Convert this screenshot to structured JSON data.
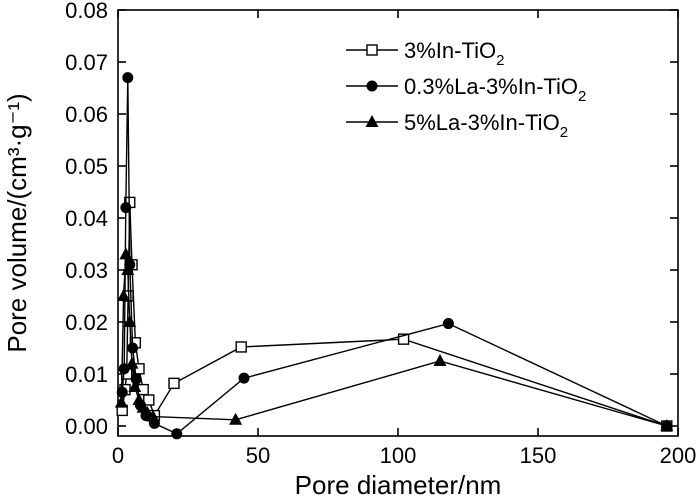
{
  "chart_data": {
    "type": "line",
    "xlabel": "Pore diameter/nm",
    "ylabel": "Pore volume/(cm³·g⁻¹)",
    "xlim": [
      0,
      200
    ],
    "ylim": [
      -0.002,
      0.08
    ],
    "x_ticks": [
      "0",
      "50",
      "100",
      "150",
      "200"
    ],
    "y_ticks": [
      "0.00",
      "0.01",
      "0.02",
      "0.03",
      "0.04",
      "0.05",
      "0.06",
      "0.07",
      "0.08"
    ],
    "x_tick_values": [
      0,
      50,
      100,
      150,
      200
    ],
    "y_tick_values": [
      0,
      0.01,
      0.02,
      0.03,
      0.04,
      0.05,
      0.06,
      0.07,
      0.08
    ],
    "grid": false,
    "legend_position": "top-right",
    "series": [
      {
        "name": "3%In-TiO2",
        "legend_main": "3%In-TiO",
        "legend_sub": "2",
        "marker": "open-square",
        "x": [
          1.5,
          2.5,
          3.1,
          3.6,
          4.2,
          5.0,
          6.2,
          7.5,
          9.0,
          11.0,
          13.0,
          20.0,
          44.0,
          102.0,
          196.0
        ],
        "y": [
          0.003,
          0.007,
          0.01,
          0.025,
          0.043,
          0.031,
          0.016,
          0.011,
          0.007,
          0.005,
          0.002,
          0.0082,
          0.0152,
          0.0167,
          0.0
        ]
      },
      {
        "name": "0.3%La-3%In-TiO2",
        "legend_main": "0.3%La-3%In-TiO",
        "legend_sub": "2",
        "marker": "filled-circle",
        "x": [
          1.5,
          2.2,
          2.8,
          3.5,
          4.2,
          5.2,
          6.5,
          8.0,
          10.0,
          13.0,
          21.0,
          45.0,
          118.0,
          196.0
        ],
        "y": [
          0.0065,
          0.011,
          0.042,
          0.067,
          0.031,
          0.015,
          0.009,
          0.004,
          0.002,
          0.0005,
          -0.0015,
          0.0092,
          0.0197,
          0.0
        ]
      },
      {
        "name": "5%La-3%In-TiO2",
        "legend_main": "5%La-3%In-TiO",
        "legend_sub": "2",
        "marker": "filled-triangle",
        "x": [
          1.2,
          2.0,
          2.8,
          3.5,
          4.2,
          5.0,
          6.0,
          7.5,
          9.0,
          10.5,
          12.5,
          42.0,
          115.0,
          196.0
        ],
        "y": [
          0.0045,
          0.025,
          0.033,
          0.03,
          0.02,
          0.012,
          0.0075,
          0.005,
          0.0035,
          0.0025,
          0.0018,
          0.0012,
          0.0125,
          0.0
        ]
      }
    ]
  }
}
